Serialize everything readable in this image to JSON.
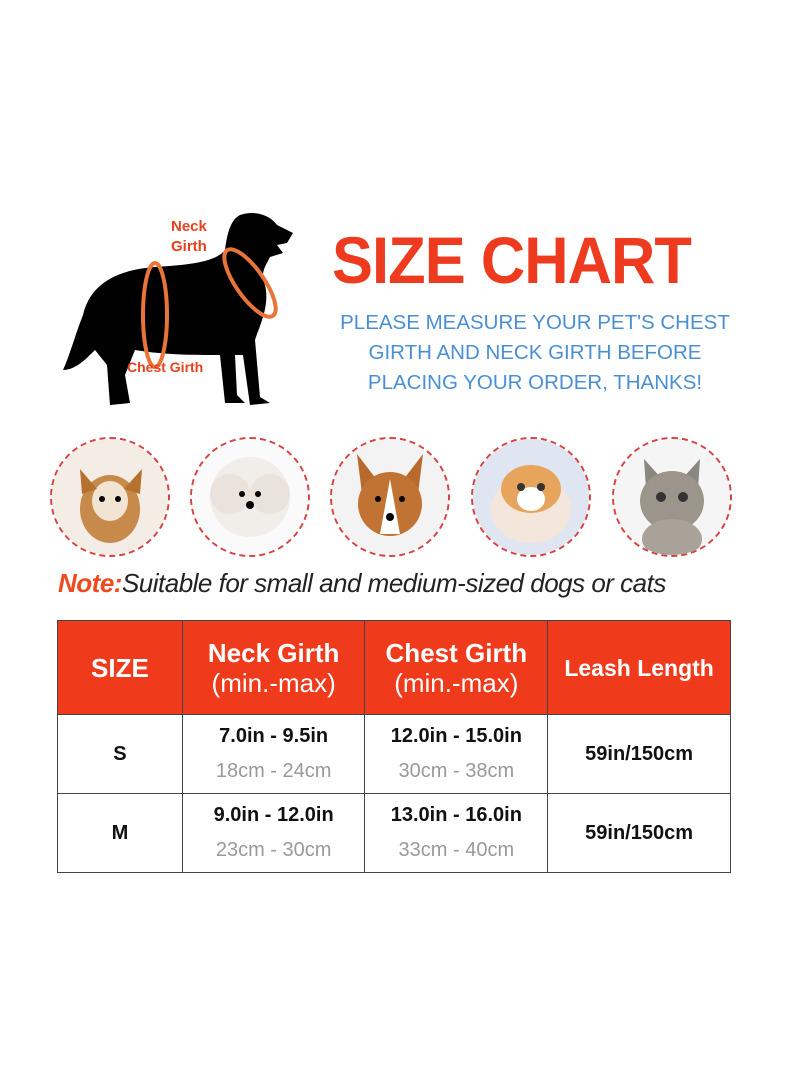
{
  "diagram": {
    "neck_label_line1": "Neck",
    "neck_label_line2": "Girth",
    "chest_label": "Chest Girth"
  },
  "title": "SIZE CHART",
  "subtitle_lines": [
    "PLEASE MEASURE YOUR PET'S CHEST",
    "GIRTH AND NECK GIRTH BEFORE",
    "PLACING YOUR ORDER, THANKS!"
  ],
  "pets": [
    "chihuahua",
    "poodle",
    "corgi",
    "orange-white cat",
    "tabby kitten"
  ],
  "note": {
    "prefix": "Note:",
    "text": "Suitable for small and medium-sized dogs or cats"
  },
  "table": {
    "headers": [
      {
        "title": "SIZE",
        "sub": ""
      },
      {
        "title": "Neck Girth",
        "sub": "(min.-max)"
      },
      {
        "title": "Chest Girth",
        "sub": "(min.-max)"
      },
      {
        "title": "Leash Length",
        "sub": ""
      }
    ],
    "rows": [
      {
        "size": "S",
        "neck_in": "7.0in - 9.5in",
        "neck_cm": "18cm - 24cm",
        "chest_in": "12.0in - 15.0in",
        "chest_cm": "30cm - 38cm",
        "leash": "59in/150cm"
      },
      {
        "size": "M",
        "neck_in": "9.0in - 12.0in",
        "neck_cm": "23cm - 30cm",
        "chest_in": "13.0in - 16.0in",
        "chest_cm": "33cm - 40cm",
        "leash": "59in/150cm"
      }
    ]
  },
  "colors": {
    "accent": "#ef3a1c",
    "subtitle": "#4a8fd6",
    "measure_ring": "#e8743a"
  }
}
